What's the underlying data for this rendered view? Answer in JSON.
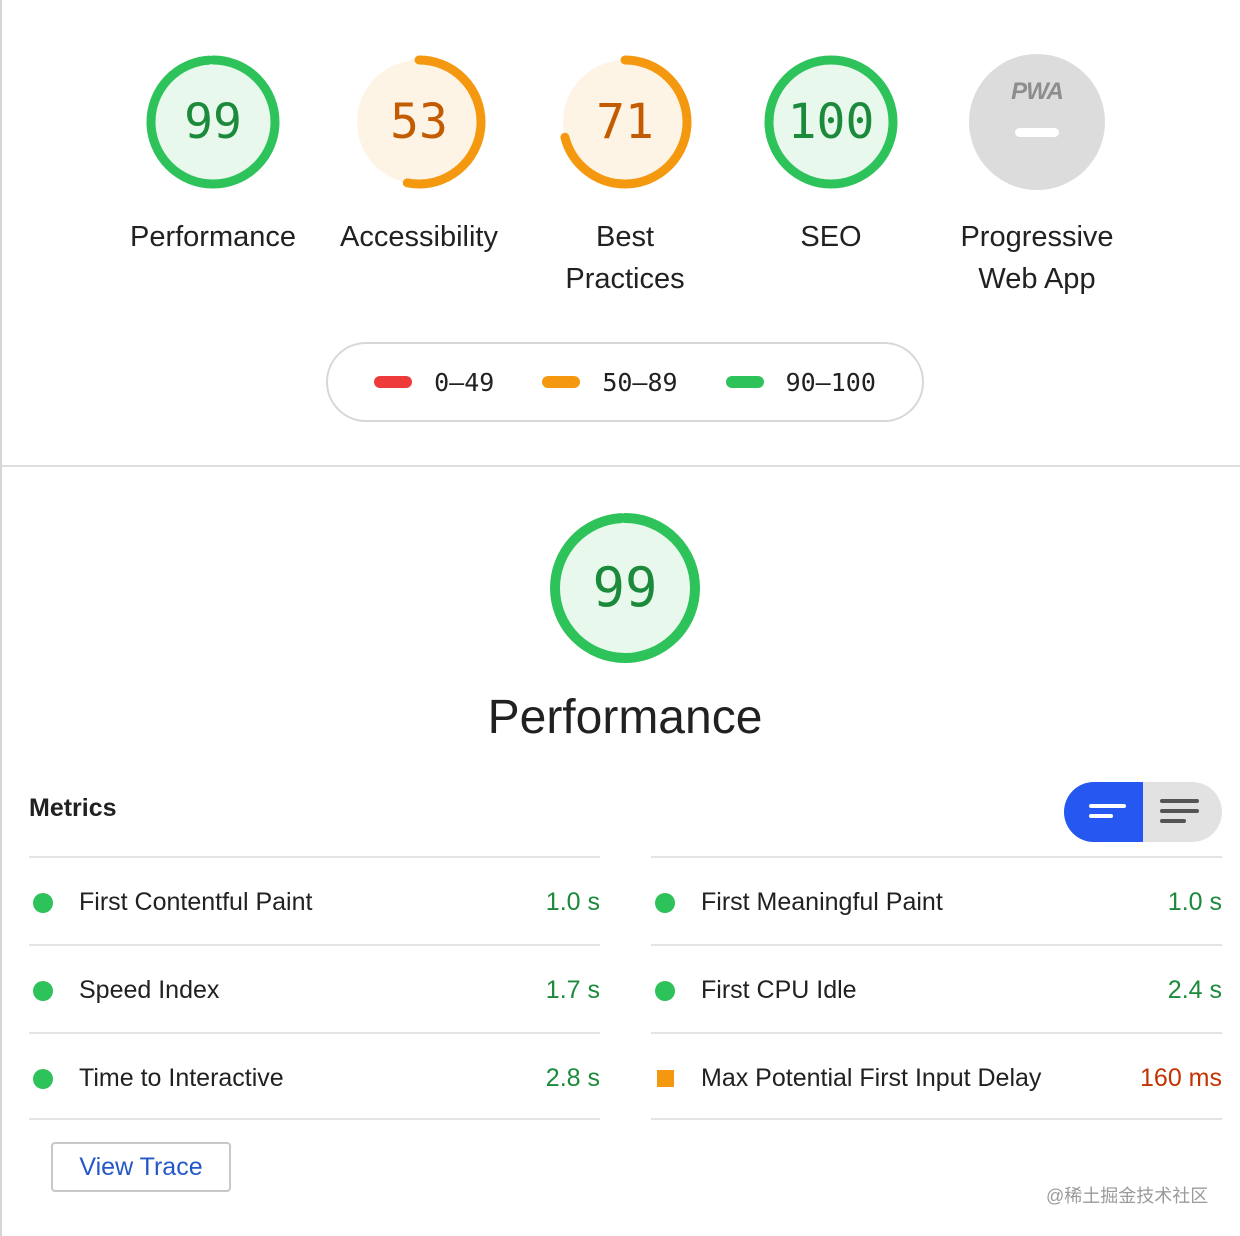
{
  "gauges": [
    {
      "score": "99",
      "label": "Performance",
      "fraction": 0.99,
      "stroke": "#2ec35a",
      "fill": "#e8f8ec",
      "text": "#1b8a3a"
    },
    {
      "score": "53",
      "label": "Accessibility",
      "fraction": 0.53,
      "stroke": "#f4990f",
      "fill": "#fef4e6",
      "text": "#c35c00"
    },
    {
      "score": "71",
      "label": "Best Practices",
      "fraction": 0.71,
      "stroke": "#f4990f",
      "fill": "#fef4e6",
      "text": "#c35c00"
    },
    {
      "score": "100",
      "label": "SEO",
      "fraction": 1.0,
      "stroke": "#2ec35a",
      "fill": "#e8f8ec",
      "text": "#1b8a3a"
    }
  ],
  "pwa": {
    "badge": "PWA",
    "label": "Progressive Web App",
    "fill": "#dcdcdc"
  },
  "legend": [
    {
      "range": "0–49",
      "color": "#ee3a3a"
    },
    {
      "range": "50–89",
      "color": "#f4990f"
    },
    {
      "range": "90–100",
      "color": "#2ec35a"
    }
  ],
  "performance": {
    "score": "99",
    "fraction": 0.99,
    "title": "Performance"
  },
  "metrics": {
    "title": "Metrics",
    "left": [
      {
        "name": "First Contentful Paint",
        "value": "1.0 s",
        "status": "pass"
      },
      {
        "name": "Speed Index",
        "value": "1.7 s",
        "status": "pass"
      },
      {
        "name": "Time to Interactive",
        "value": "2.8 s",
        "status": "pass"
      }
    ],
    "right": [
      {
        "name": "First Meaningful Paint",
        "value": "1.0 s",
        "status": "pass"
      },
      {
        "name": "First CPU Idle",
        "value": "2.4 s",
        "status": "pass"
      },
      {
        "name": "Max Potential First Input Delay",
        "value": "160 ms",
        "status": "average"
      }
    ]
  },
  "view_trace_label": "View Trace",
  "watermark": "@稀土掘金技术社区",
  "colors": {
    "accent": "#2458f0",
    "pass": "#2ec35a",
    "average": "#f4990f",
    "fail": "#ee3a3a"
  }
}
